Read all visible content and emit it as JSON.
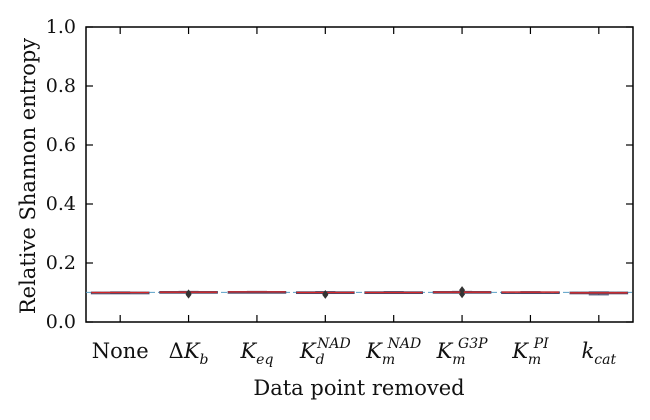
{
  "chart_data": {
    "type": "box",
    "xlabel": "Data point removed",
    "ylabel": "Relative Shannon entropy",
    "ylim": [
      0.0,
      1.0
    ],
    "yticks": [
      0.0,
      0.2,
      0.4,
      0.6,
      0.8,
      1.0
    ],
    "ytick_labels": [
      "0.0",
      "0.2",
      "0.4",
      "0.6",
      "0.8",
      "1.0"
    ],
    "grid": false,
    "categories": [
      {
        "key": "None",
        "label": {
          "pre": "None"
        }
      },
      {
        "key": "dKb",
        "label": {
          "pre": "Δ",
          "main": "K",
          "sub": "b"
        }
      },
      {
        "key": "Keq",
        "label": {
          "main": "K",
          "sub": "eq"
        }
      },
      {
        "key": "KdNAD",
        "label": {
          "main": "K",
          "sub": "d",
          "sup": "NAD"
        }
      },
      {
        "key": "KmNAD",
        "label": {
          "main": "K",
          "sub": "m",
          "sup": "NAD"
        }
      },
      {
        "key": "KmG3P",
        "label": {
          "main": "K",
          "sub": "m",
          "sup": "G3P"
        }
      },
      {
        "key": "KmPI",
        "label": {
          "main": "K",
          "sub": "m",
          "sup": "PI"
        }
      },
      {
        "key": "kcat",
        "label": {
          "main": "k",
          "sub": "cat"
        }
      }
    ],
    "boxes": [
      {
        "q1": 0.099,
        "median": 0.1,
        "q3": 0.101,
        "whisker_low": 0.098,
        "whisker_high": 0.102,
        "outliers": []
      },
      {
        "q1": 0.1,
        "median": 0.101,
        "q3": 0.103,
        "whisker_low": 0.099,
        "whisker_high": 0.104,
        "outliers": [
          0.093,
          0.097
        ]
      },
      {
        "q1": 0.101,
        "median": 0.102,
        "q3": 0.103,
        "whisker_low": 0.1,
        "whisker_high": 0.104,
        "outliers": []
      },
      {
        "q1": 0.099,
        "median": 0.1,
        "q3": 0.102,
        "whisker_low": 0.098,
        "whisker_high": 0.103,
        "outliers": [
          0.092,
          0.095
        ]
      },
      {
        "q1": 0.099,
        "median": 0.1,
        "q3": 0.102,
        "whisker_low": 0.097,
        "whisker_high": 0.103,
        "outliers": []
      },
      {
        "q1": 0.1,
        "median": 0.101,
        "q3": 0.103,
        "whisker_low": 0.099,
        "whisker_high": 0.104,
        "outliers": [
          0.094,
          0.108
        ]
      },
      {
        "q1": 0.1,
        "median": 0.101,
        "q3": 0.102,
        "whisker_low": 0.099,
        "whisker_high": 0.103,
        "outliers": []
      },
      {
        "q1": 0.098,
        "median": 0.099,
        "q3": 0.101,
        "whisker_low": 0.092,
        "whisker_high": 0.102,
        "outliers": []
      }
    ],
    "colors": {
      "box_edge": "#4a4a6a",
      "median": "#d62728",
      "whisker": "#4a4a6a",
      "mean_line": "#5aa0c8",
      "outlier": "#333333",
      "axes": "#000000"
    }
  }
}
